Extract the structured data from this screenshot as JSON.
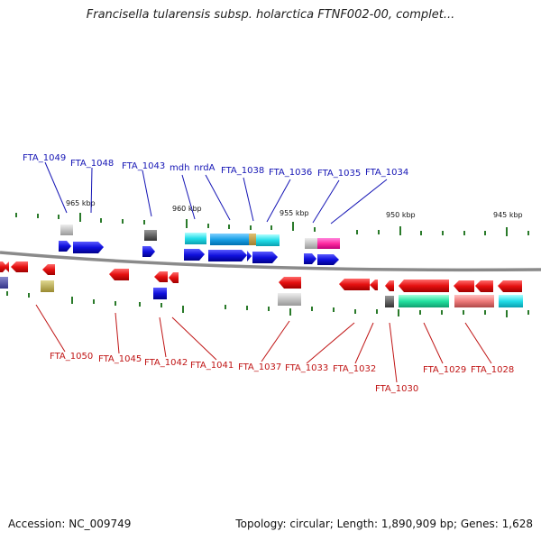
{
  "header": {
    "title": "Francisella tularensis subsp. holarctica FTNF002-00, complet..."
  },
  "footer": {
    "accession": "Accession: NC_009749",
    "topology": "Topology: circular; Length: 1,890,909 bp; Genes: 1,628"
  },
  "ruler_labels": [
    "965 kbp",
    "960 kbp",
    "955 kbp",
    "950 kbp",
    "945 kbp"
  ],
  "forward_labels": [
    "FTA_1049",
    "FTA_1048",
    "FTA_1043",
    "mdh",
    "nrdA",
    "FTA_1038",
    "FTA_1036",
    "FTA_1035",
    "FTA_1034"
  ],
  "reverse_labels": [
    "FTA_1050",
    "FTA_1045",
    "FTA_1042",
    "FTA_1041",
    "FTA_1037",
    "FTA_1033",
    "FTA_1032",
    "FTA_1030",
    "FTA_1029",
    "FTA_1028"
  ],
  "colors": {
    "forward_gene": "#1010dd",
    "reverse_gene": "#e01010",
    "forward_label": "#1515b5",
    "reverse_label": "#c01515",
    "backbone": "#8a8a8a",
    "tick": "#2a7a2a"
  }
}
